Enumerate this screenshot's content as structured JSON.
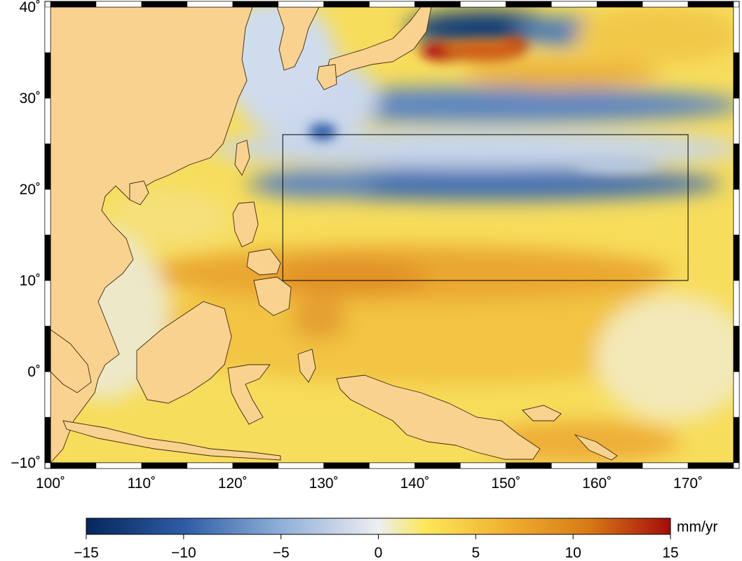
{
  "map": {
    "extent": {
      "lon_min": 100,
      "lon_max": 175,
      "lat_min": -10,
      "lat_max": 40
    },
    "lon_ticks": [
      {
        "value": 100,
        "label": "100˚"
      },
      {
        "value": 110,
        "label": "110˚"
      },
      {
        "value": 120,
        "label": "120˚"
      },
      {
        "value": 130,
        "label": "130˚"
      },
      {
        "value": 140,
        "label": "140˚"
      },
      {
        "value": 150,
        "label": "150˚"
      },
      {
        "value": 160,
        "label": "160˚"
      },
      {
        "value": 170,
        "label": "170˚"
      }
    ],
    "lat_ticks": [
      {
        "value": 40,
        "label": "40˚"
      },
      {
        "value": 30,
        "label": "30˚"
      },
      {
        "value": 20,
        "label": "20˚"
      },
      {
        "value": 10,
        "label": "10˚"
      },
      {
        "value": 0,
        "label": "0˚"
      },
      {
        "value": -10,
        "label": "−10˚"
      }
    ],
    "study_box": {
      "lon_min": 125.5,
      "lon_max": 170,
      "lat_min": 10,
      "lat_max": 26
    },
    "colors": {
      "land": "#f9d28f",
      "coast": "#3a2a10",
      "frame": "#000000"
    }
  },
  "colorbar": {
    "min": -15,
    "max": 15,
    "unit": "mm/yr",
    "ticks": [
      {
        "value": -15,
        "label": "−15"
      },
      {
        "value": -10,
        "label": "−10"
      },
      {
        "value": -5,
        "label": "−5"
      },
      {
        "value": 0,
        "label": "0"
      },
      {
        "value": 5,
        "label": "5"
      },
      {
        "value": 10,
        "label": "10"
      },
      {
        "value": 15,
        "label": "15"
      }
    ],
    "stops": [
      "#05275c",
      "#2f5da6",
      "#8eaed8",
      "#edeef0",
      "#fde75a",
      "#f0b030",
      "#d87a16",
      "#a50b0b"
    ]
  }
}
